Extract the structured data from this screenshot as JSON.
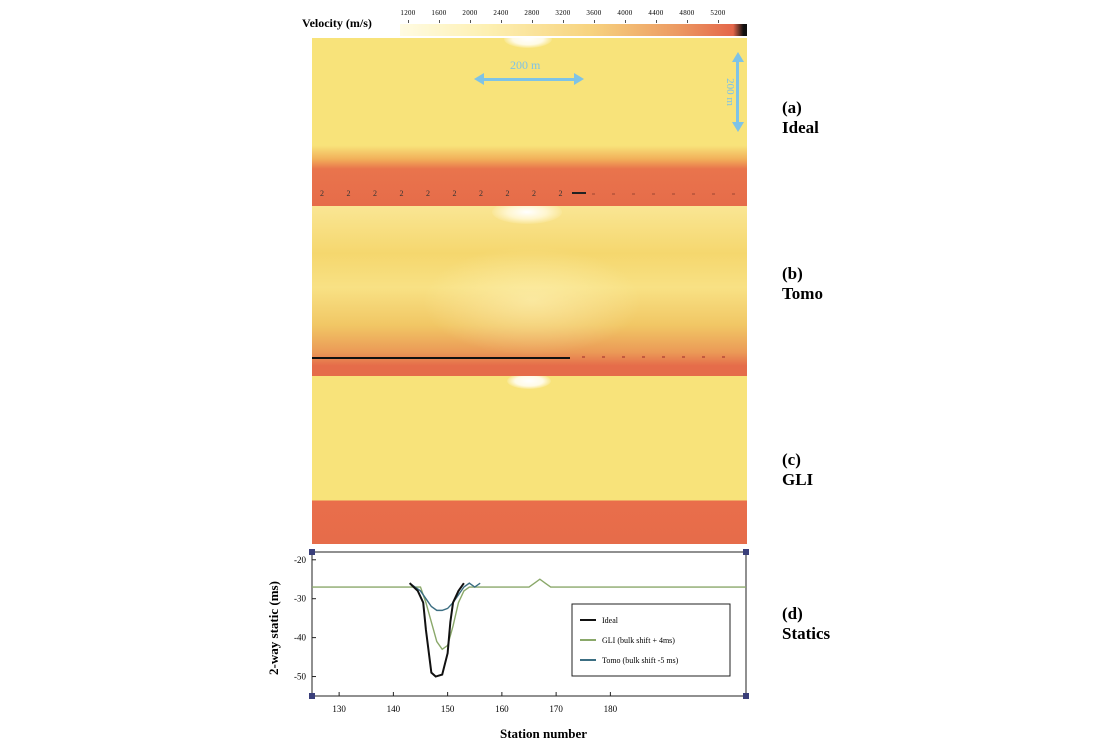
{
  "colorbar": {
    "title": "Velocity (m/s)",
    "ticks": [
      "1200",
      "1600",
      "2000",
      "2400",
      "2800",
      "3200",
      "3600",
      "4000",
      "4400",
      "4800",
      "5200"
    ],
    "colors": [
      "#fffbe3",
      "#fdf0b2",
      "#f7d37f",
      "#ec9a62",
      "#e4664a"
    ]
  },
  "scale": {
    "horizontal": "200 m",
    "vertical": "200 m"
  },
  "panels": [
    {
      "letter": "(a)",
      "name": "Ideal"
    },
    {
      "letter": "(b)",
      "name": "Tomo"
    },
    {
      "letter": "(c)",
      "name": "GLI"
    },
    {
      "letter": "(d)",
      "name": "Statics"
    }
  ],
  "markers": [
    "2",
    "2",
    "2",
    "2",
    "2",
    "2",
    "2",
    "2",
    "2",
    "2"
  ],
  "chart_data": {
    "type": "line",
    "title": "",
    "xlabel": "Station number",
    "ylabel": "2-way static (ms)",
    "xlim": [
      125,
      205
    ],
    "ylim": [
      -55,
      -18
    ],
    "xticks": [
      130,
      140,
      150,
      160,
      170,
      180
    ],
    "xtick_labels": [
      "130",
      "140",
      "150",
      "160",
      "170",
      "180"
    ],
    "yticks": [
      -20,
      -30,
      -40,
      -50
    ],
    "ytick_labels": [
      "-20",
      "-30",
      "-40",
      "-50"
    ],
    "legend": "bottom-right",
    "series": [
      {
        "name": "Ideal",
        "color": "#111111",
        "x": [
          143,
          144.5,
          145.5,
          146,
          147,
          147.8,
          149,
          150,
          150.5,
          151,
          152,
          153
        ],
        "y": [
          -26,
          -28,
          -31,
          -38,
          -49,
          -50,
          -49.5,
          -44,
          -36,
          -31,
          -28,
          -26
        ]
      },
      {
        "name": "GLI (bulk shift + 4ms)",
        "color": "#8aa86a",
        "x": [
          125,
          145,
          146,
          147,
          148,
          149,
          150,
          151,
          152,
          153,
          154,
          155,
          165,
          166,
          167,
          168,
          169,
          205
        ],
        "y": [
          -27,
          -27,
          -31,
          -36,
          -41,
          -43,
          -42,
          -37,
          -31,
          -28,
          -27,
          -27,
          -27,
          -26,
          -25,
          -26,
          -27,
          -27
        ]
      },
      {
        "name": "Tomo (bulk shift -5 ms)",
        "color": "#3c6e82",
        "x": [
          143,
          144,
          145,
          146,
          147,
          148,
          149,
          150,
          151,
          152,
          153,
          154,
          155,
          156
        ],
        "y": [
          -26,
          -27,
          -28,
          -30,
          -32,
          -33,
          -33,
          -32.5,
          -31,
          -29,
          -27,
          -26,
          -27,
          -26
        ]
      }
    ]
  }
}
